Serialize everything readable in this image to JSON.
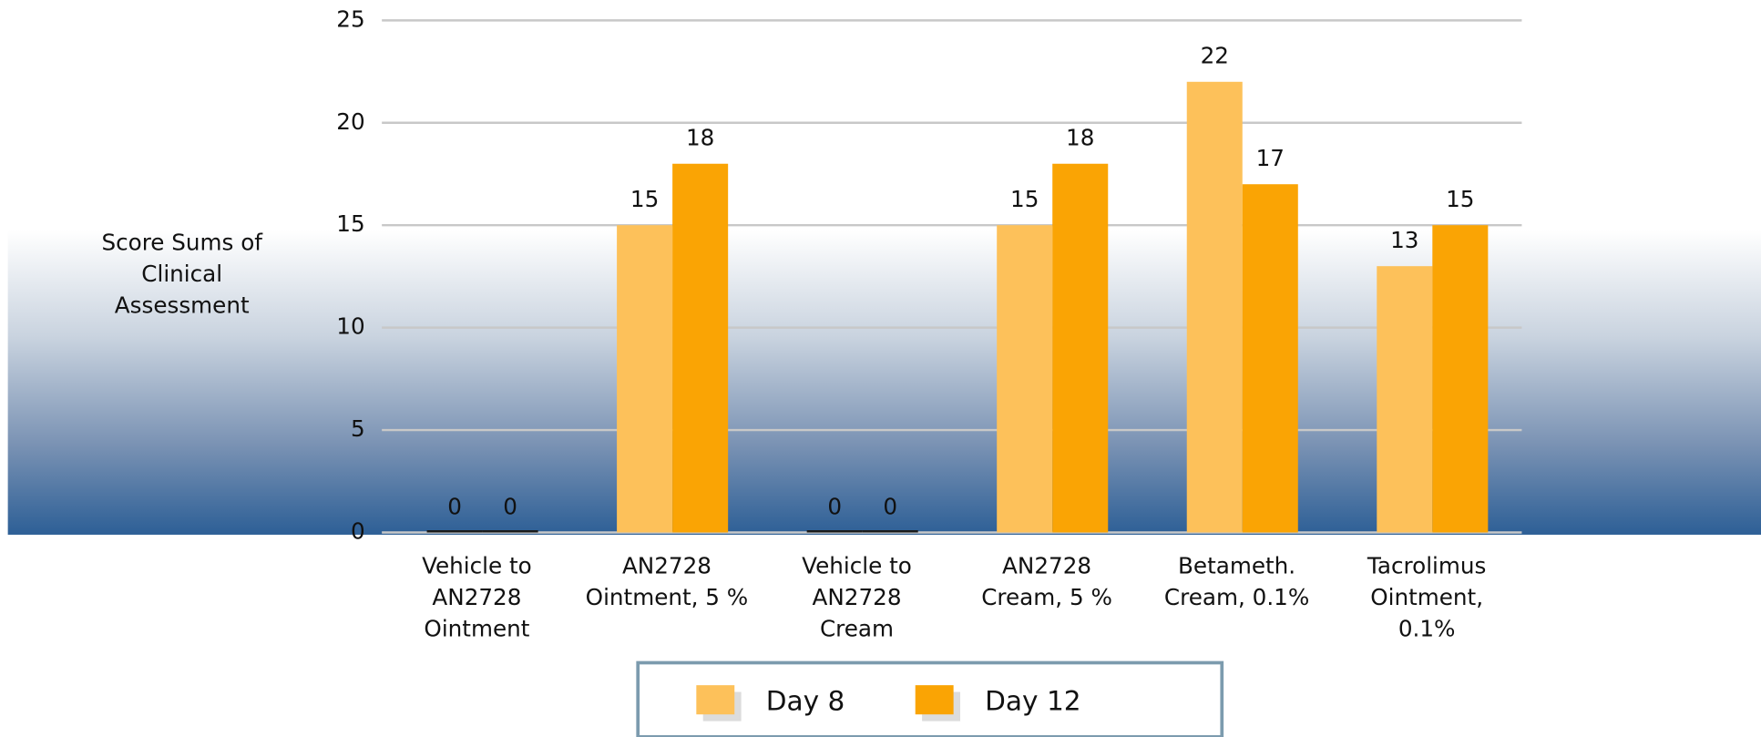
{
  "chart_data": {
    "type": "bar",
    "y_axis_label": "Score Sums of\nClinical\nAssessment",
    "categories": [
      "Vehicle to\nAN2728\nOintment",
      "AN2728\nOintment, 5 %",
      "Vehicle to\nAN2728\nCream",
      "AN2728\nCream, 5 %",
      "Betameth.\nCream, 0.1%",
      "Tacrolimus\nOintment,\n0.1%"
    ],
    "series": [
      {
        "name": "Day 8",
        "color": "#fdc15a",
        "values": [
          0,
          15,
          0,
          15,
          22,
          13
        ]
      },
      {
        "name": "Day 12",
        "color": "#faa404",
        "values": [
          0,
          18,
          0,
          18,
          17,
          15
        ]
      }
    ],
    "ylim": [
      0,
      25
    ],
    "yticks": [
      0,
      5,
      10,
      15,
      20,
      25
    ],
    "grid": true,
    "legend": "bottom"
  }
}
